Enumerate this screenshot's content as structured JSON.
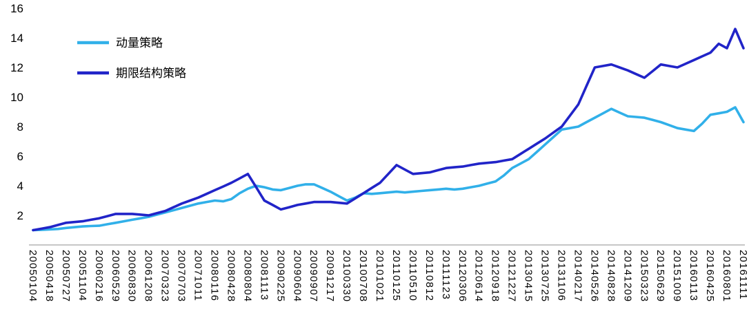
{
  "chart_data": {
    "type": "line",
    "title": "",
    "xlabel": "",
    "ylabel": "",
    "ylim": [
      0,
      16
    ],
    "y_ticks": [
      16,
      14,
      12,
      10,
      8,
      6,
      4,
      2
    ],
    "grid": false,
    "legend_position": "top-left",
    "x_labels": [
      "20050104",
      "20050418",
      "20050727",
      "20051104",
      "20060216",
      "20060529",
      "20060830",
      "20061208",
      "20070323",
      "20070703",
      "20071011",
      "20080116",
      "20080428",
      "20080804",
      "20081113",
      "20090225",
      "20090604",
      "20090907",
      "20091217",
      "20100330",
      "20100708",
      "20101021",
      "20110125",
      "20110510",
      "20110812",
      "20111123",
      "20120306",
      "20120614",
      "20120918",
      "20121227",
      "20130415",
      "20130725",
      "20131106",
      "20140217",
      "20140526",
      "20140828",
      "20141209",
      "20150323",
      "20150629",
      "20151009",
      "20160113",
      "20160425",
      "20160801",
      "20161111"
    ],
    "series": [
      {
        "name": "动量策略",
        "color": "#31B0E9",
        "values": [
          1.0,
          1.02,
          1.05,
          1.08,
          1.15,
          1.2,
          1.25,
          1.28,
          1.3,
          1.4,
          1.5,
          1.6,
          1.7,
          1.8,
          1.9,
          2.05,
          2.2,
          2.35,
          2.5,
          2.65,
          2.8,
          2.9,
          3.0,
          2.95,
          3.1,
          3.5,
          3.8,
          4.0,
          3.9,
          3.75,
          3.7,
          3.85,
          4.0,
          4.1,
          4.1,
          3.85,
          3.6,
          3.3,
          3.0,
          3.2,
          3.5,
          3.45,
          3.5,
          3.55,
          3.6,
          3.55,
          3.6,
          3.65,
          3.7,
          3.75,
          3.8,
          3.75,
          3.8,
          3.9,
          4.0,
          4.15,
          4.3,
          4.7,
          5.2,
          5.5,
          5.8,
          6.3,
          6.8,
          7.3,
          7.8,
          7.9,
          8.0,
          8.3,
          8.6,
          8.9,
          9.2,
          8.95,
          8.7,
          8.65,
          8.6,
          8.45,
          8.3,
          8.1,
          7.9,
          7.8,
          7.7,
          8.2,
          8.8,
          8.9,
          9.0,
          9.3,
          8.3
        ]
      },
      {
        "name": "期限结构策略",
        "color": "#2124C8",
        "values": [
          1.0,
          1.1,
          1.2,
          1.35,
          1.5,
          1.55,
          1.6,
          1.7,
          1.8,
          1.95,
          2.1,
          2.1,
          2.1,
          2.05,
          2.0,
          2.15,
          2.3,
          2.55,
          2.8,
          3.0,
          3.2,
          3.45,
          3.7,
          3.95,
          4.2,
          4.5,
          4.8,
          3.9,
          3.0,
          2.7,
          2.4,
          2.55,
          2.7,
          2.8,
          2.9,
          2.9,
          2.9,
          2.85,
          2.8,
          3.15,
          3.5,
          3.85,
          4.2,
          4.8,
          5.4,
          5.1,
          4.8,
          4.85,
          4.9,
          5.05,
          5.2,
          5.25,
          5.3,
          5.4,
          5.5,
          5.55,
          5.6,
          5.7,
          5.8,
          6.15,
          6.5,
          6.85,
          7.2,
          7.6,
          8.0,
          8.75,
          9.5,
          10.75,
          12.0,
          12.1,
          12.2,
          12.0,
          11.8,
          11.55,
          11.3,
          11.75,
          12.2,
          12.1,
          12.0,
          12.25,
          12.5,
          12.75,
          13.0,
          13.6,
          13.3,
          14.6,
          13.3
        ]
      }
    ]
  }
}
